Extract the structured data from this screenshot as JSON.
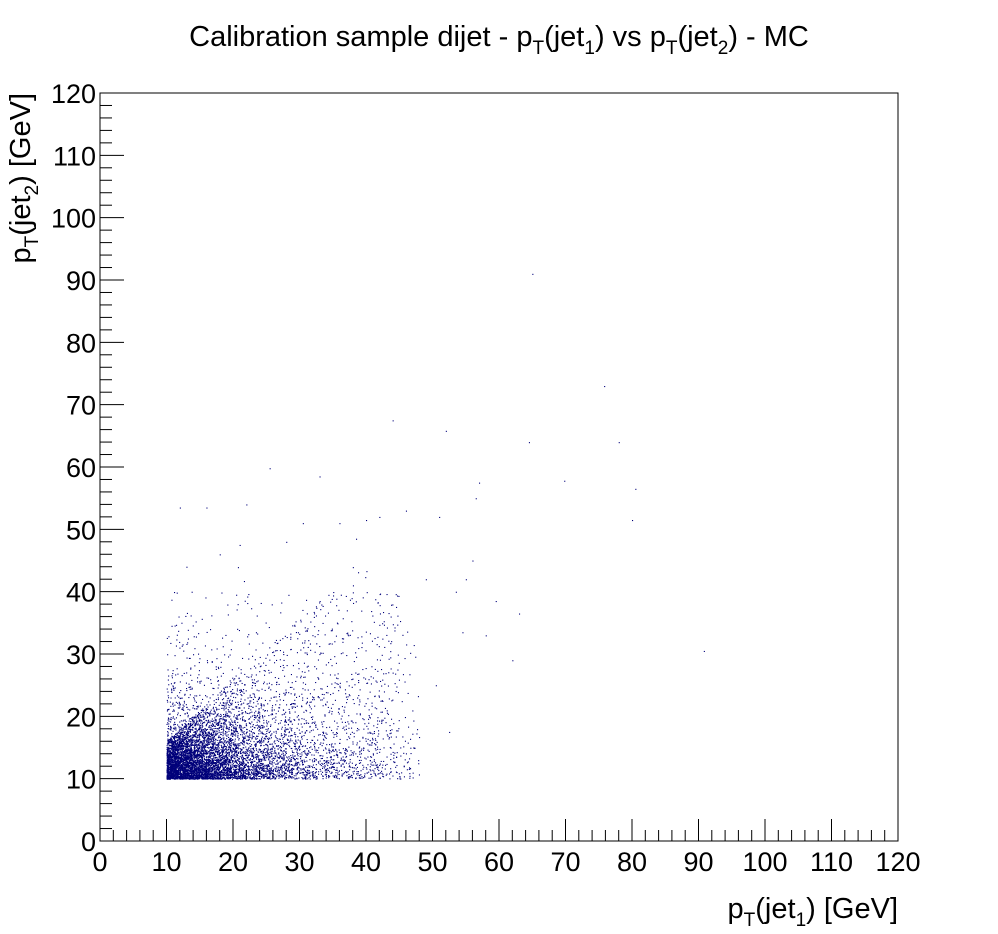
{
  "chart_data": {
    "type": "scatter",
    "title": {
      "prefix": "Calibration sample dijet - p",
      "sub1": "T",
      "mid1": "(jet",
      "sub2": "1",
      "mid2": ") vs p",
      "sub3": "T",
      "mid3": "(jet",
      "sub4": "2",
      "suffix": ") - MC"
    },
    "xlabel": {
      "base": "p",
      "sub1": "T",
      "mid": "(jet",
      "sub2": "1",
      "suffix": ") [GeV]"
    },
    "ylabel": {
      "base": "p",
      "sub1": "T",
      "mid": "(jet",
      "sub2": "2",
      "suffix": ") [GeV]"
    },
    "xlim": [
      0,
      120
    ],
    "ylim": [
      0,
      120
    ],
    "xticks": [
      "0",
      "10",
      "20",
      "30",
      "40",
      "50",
      "60",
      "70",
      "80",
      "90",
      "100",
      "110",
      "120"
    ],
    "yticks": [
      "0",
      "10",
      "20",
      "30",
      "40",
      "50",
      "60",
      "70",
      "80",
      "90",
      "100",
      "110",
      "120"
    ],
    "grid": false,
    "legend": "none",
    "marker_color": "#00007a",
    "distribution": {
      "description_points": "dense cluster of dijet events starting at pT cut of 10 GeV on both axes",
      "cut_x": 10,
      "cut_y": 10,
      "n_dense": 9000
    },
    "sparse_points": [
      [
        12.0,
        53.5
      ],
      [
        16.0,
        53.5
      ],
      [
        22.0,
        54.0
      ],
      [
        25.5,
        59.8
      ],
      [
        33.0,
        58.5
      ],
      [
        44.0,
        67.5
      ],
      [
        52.0,
        65.8
      ],
      [
        57.0,
        57.5
      ],
      [
        56.5,
        55.0
      ],
      [
        65.0,
        91.0
      ],
      [
        64.5,
        64.0
      ],
      [
        69.8,
        57.8
      ],
      [
        75.8,
        73.0
      ],
      [
        78.0,
        64.0
      ],
      [
        80.5,
        56.5
      ],
      [
        80.0,
        51.5
      ],
      [
        90.8,
        30.5
      ],
      [
        63.0,
        36.5
      ],
      [
        62.0,
        29.0
      ],
      [
        56.0,
        45.0
      ],
      [
        55.0,
        42.0
      ],
      [
        53.5,
        40.0
      ],
      [
        51.0,
        52.0
      ],
      [
        49.0,
        42.0
      ],
      [
        47.0,
        10.2
      ],
      [
        58.0,
        33.0
      ],
      [
        59.5,
        38.5
      ],
      [
        54.5,
        33.5
      ],
      [
        50.5,
        25.0
      ],
      [
        52.5,
        17.5
      ],
      [
        46.0,
        53.0
      ],
      [
        42.0,
        52.0
      ],
      [
        40.0,
        51.5
      ],
      [
        38.5,
        48.5
      ],
      [
        36.0,
        51.0
      ],
      [
        30.5,
        51.0
      ],
      [
        28.0,
        48.0
      ],
      [
        21.0,
        47.5
      ],
      [
        18.0,
        46.0
      ],
      [
        13.0,
        44.0
      ]
    ]
  }
}
